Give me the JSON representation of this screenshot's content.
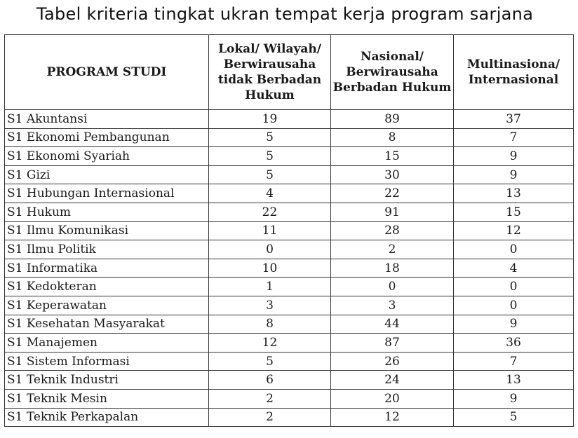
{
  "title": "Tabel kriteria tingkat ukran tempat kerja program sarjana",
  "table": {
    "headers": [
      "PROGRAM STUDI",
      "Lokal/ Wilayah/ Berwirausaha tidak Berbadan Hukum",
      "Nasional/ Berwirausaha Berbadan Hukum",
      "Multinasiona/ Internasional"
    ],
    "rows": [
      [
        "S1 Akuntansi",
        "19",
        "89",
        "37"
      ],
      [
        "S1 Ekonomi Pembangunan",
        "5",
        "8",
        "7"
      ],
      [
        "S1 Ekonomi Syariah",
        "5",
        "15",
        "9"
      ],
      [
        "S1 Gizi",
        "5",
        "30",
        "9"
      ],
      [
        "S1 Hubungan Internasional",
        "4",
        "22",
        "13"
      ],
      [
        "S1 Hukum",
        "22",
        "91",
        "15"
      ],
      [
        "S1 Ilmu Komunikasi",
        "11",
        "28",
        "12"
      ],
      [
        "S1 Ilmu Politik",
        "0",
        "2",
        "0"
      ],
      [
        "S1 Informatika",
        "10",
        "18",
        "4"
      ],
      [
        "S1 Kedokteran",
        "1",
        "0",
        "0"
      ],
      [
        "S1 Keperawatan",
        "3",
        "3",
        "0"
      ],
      [
        "S1 Kesehatan Masyarakat",
        "8",
        "44",
        "9"
      ],
      [
        "S1 Manajemen",
        "12",
        "87",
        "36"
      ],
      [
        "S1 Sistem Informasi",
        "5",
        "26",
        "7"
      ],
      [
        "S1 Teknik Industri",
        "6",
        "24",
        "13"
      ],
      [
        "S1 Teknik Mesin",
        "2",
        "20",
        "9"
      ],
      [
        "S1 Teknik Perkapalan",
        "2",
        "12",
        "5"
      ]
    ]
  }
}
